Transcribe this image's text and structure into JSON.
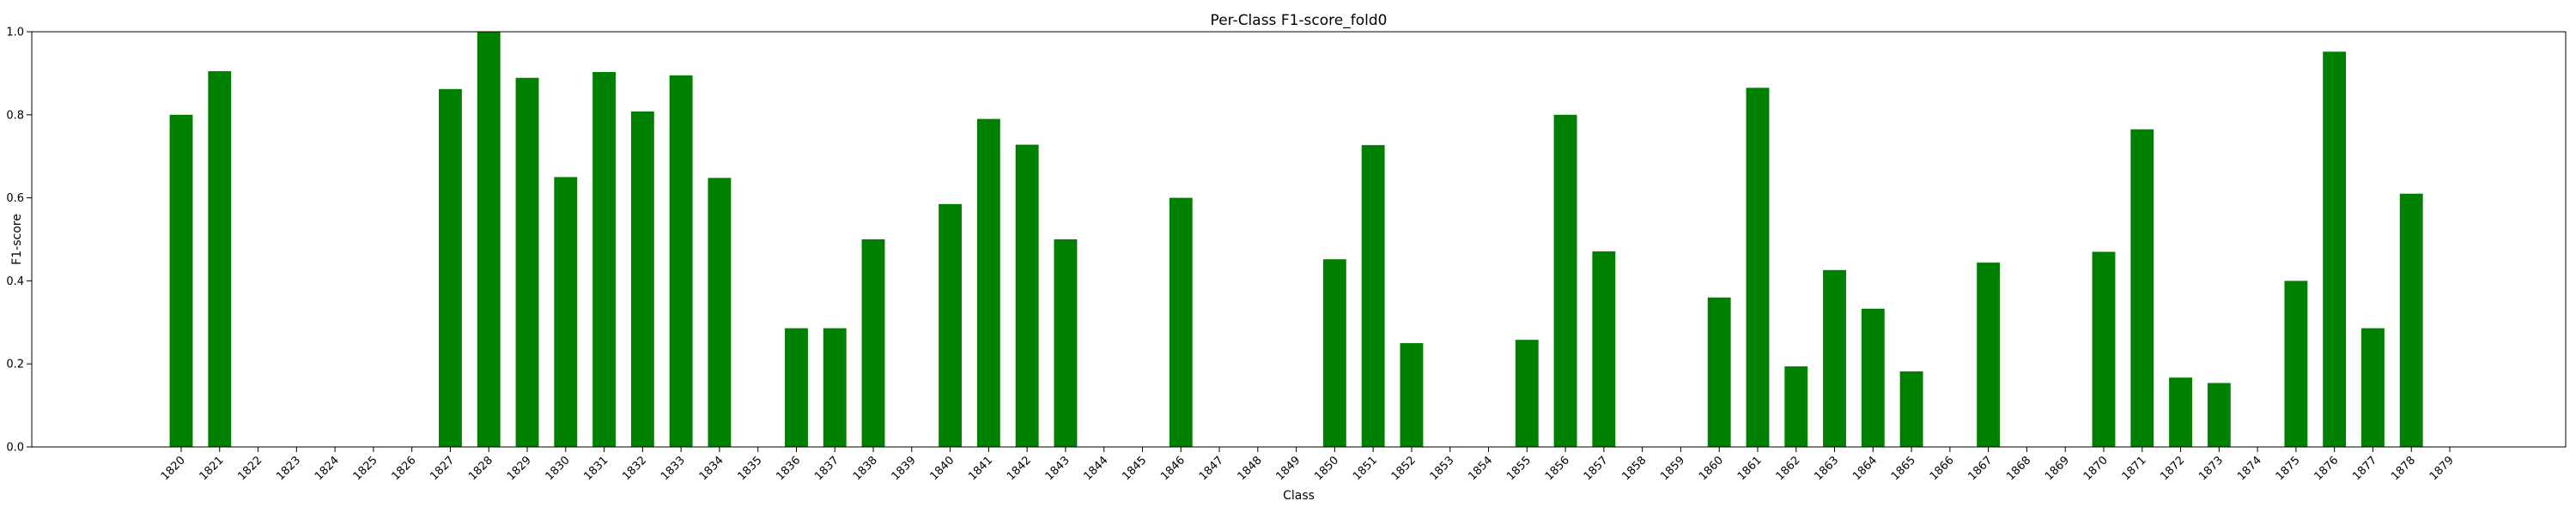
{
  "chart_data": {
    "type": "bar",
    "title": "Per-Class F1-score_fold0",
    "xlabel": "Class",
    "ylabel": "F1-score",
    "ylim": [
      0,
      1.0
    ],
    "yticks": [
      "0.0",
      "0.2",
      "0.4",
      "0.6",
      "0.8",
      "1.0"
    ],
    "bar_color": "#008000",
    "grid": false,
    "categories": [
      "1820",
      "1821",
      "1822",
      "1823",
      "1824",
      "1825",
      "1826",
      "1827",
      "1828",
      "1829",
      "1830",
      "1831",
      "1832",
      "1833",
      "1834",
      "1835",
      "1836",
      "1837",
      "1838",
      "1839",
      "1840",
      "1841",
      "1842",
      "1843",
      "1844",
      "1845",
      "1846",
      "1847",
      "1848",
      "1849",
      "1850",
      "1851",
      "1852",
      "1853",
      "1854",
      "1855",
      "1856",
      "1857",
      "1858",
      "1859",
      "1860",
      "1861",
      "1862",
      "1863",
      "1864",
      "1865",
      "1866",
      "1867",
      "1868",
      "1869",
      "1870",
      "1871",
      "1872",
      "1873",
      "1874",
      "1875",
      "1876",
      "1877",
      "1878",
      "1879"
    ],
    "values": [
      0.8,
      0.905,
      0,
      0,
      0,
      0,
      0,
      0.862,
      1.0,
      0.889,
      0.65,
      0.903,
      0.808,
      0.895,
      0.648,
      0,
      0.286,
      0.286,
      0.5,
      0,
      0.585,
      0.79,
      0.728,
      0.5,
      0,
      0,
      0.6,
      0,
      0,
      0,
      0.452,
      0.727,
      0.25,
      0,
      0,
      0.258,
      0.8,
      0.471,
      0,
      0,
      0.36,
      0.865,
      0.194,
      0.426,
      0.333,
      0.182,
      0,
      0.444,
      0,
      0,
      0.47,
      0.765,
      0.167,
      0.154,
      0,
      0.4,
      0.952,
      0.286,
      0.61,
      0
    ]
  }
}
